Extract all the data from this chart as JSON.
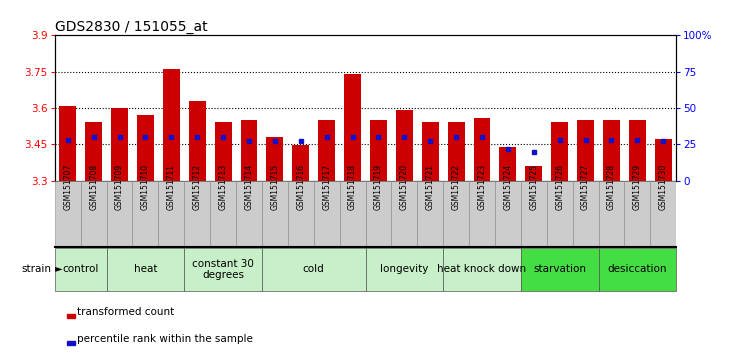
{
  "title": "GDS2830 / 151055_at",
  "samples": [
    "GSM151707",
    "GSM151708",
    "GSM151709",
    "GSM151710",
    "GSM151711",
    "GSM151712",
    "GSM151713",
    "GSM151714",
    "GSM151715",
    "GSM151716",
    "GSM151717",
    "GSM151718",
    "GSM151719",
    "GSM151720",
    "GSM151721",
    "GSM151722",
    "GSM151723",
    "GSM151724",
    "GSM151725",
    "GSM151726",
    "GSM151727",
    "GSM151728",
    "GSM151729",
    "GSM151730"
  ],
  "bar_values": [
    3.61,
    3.54,
    3.6,
    3.57,
    3.76,
    3.63,
    3.54,
    3.55,
    3.48,
    3.445,
    3.55,
    3.74,
    3.55,
    3.59,
    3.54,
    3.54,
    3.56,
    3.44,
    3.36,
    3.54,
    3.55,
    3.55,
    3.55,
    3.47
  ],
  "percentile_values": [
    28,
    30,
    30,
    30,
    30,
    30,
    30,
    27,
    27,
    27,
    30,
    30,
    30,
    30,
    27,
    30,
    30,
    22,
    20,
    28,
    28,
    28,
    28,
    27
  ],
  "ylim_left": [
    3.3,
    3.9
  ],
  "ylim_right": [
    0,
    100
  ],
  "yticks_left": [
    3.3,
    3.45,
    3.6,
    3.75,
    3.9
  ],
  "yticks_right": [
    0,
    25,
    50,
    75,
    100
  ],
  "ytick_labels_left": [
    "3.3",
    "3.45",
    "3.6",
    "3.75",
    "3.9"
  ],
  "ytick_labels_right": [
    "0",
    "25",
    "50",
    "75",
    "100%"
  ],
  "hlines": [
    3.45,
    3.6,
    3.75
  ],
  "bar_color": "#cc0000",
  "dot_color": "#1111cc",
  "bar_width": 0.65,
  "groups": [
    {
      "label": "control",
      "start": 0,
      "end": 1,
      "color": "#c8f0c8"
    },
    {
      "label": "heat",
      "start": 2,
      "end": 4,
      "color": "#c8f0c8"
    },
    {
      "label": "constant 30\ndegrees",
      "start": 5,
      "end": 7,
      "color": "#c8f0c8"
    },
    {
      "label": "cold",
      "start": 8,
      "end": 11,
      "color": "#c8f0c8"
    },
    {
      "label": "longevity",
      "start": 12,
      "end": 14,
      "color": "#c8f0c8"
    },
    {
      "label": "heat knock down",
      "start": 15,
      "end": 17,
      "color": "#c8f0c8"
    },
    {
      "label": "starvation",
      "start": 18,
      "end": 20,
      "color": "#44dd44"
    },
    {
      "label": "desiccation",
      "start": 21,
      "end": 23,
      "color": "#44dd44"
    }
  ],
  "bg_color": "#ffffff",
  "title_fontsize": 10,
  "tick_fontsize": 7.5,
  "sample_fontsize": 5.5,
  "group_fontsize": 7.5
}
